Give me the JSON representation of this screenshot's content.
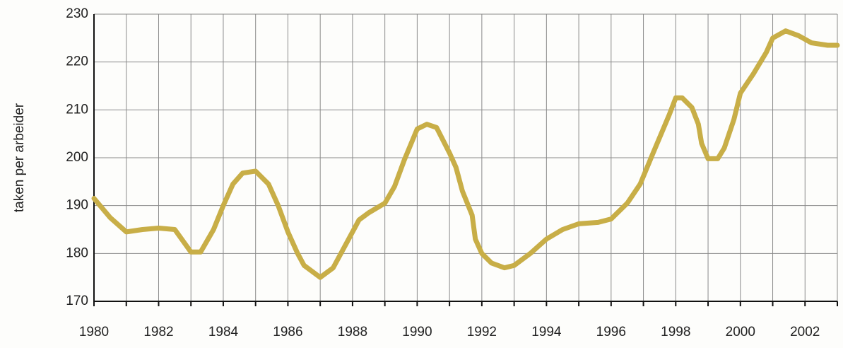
{
  "chart_data": {
    "type": "line",
    "y_label": "taken per arbeider",
    "x": [
      1980.0,
      1980.5,
      1981.0,
      1981.5,
      1982.0,
      1982.5,
      1983.0,
      1983.3,
      1983.7,
      1984.0,
      1984.3,
      1984.6,
      1985.0,
      1985.4,
      1985.7,
      1986.0,
      1986.3,
      1986.5,
      1987.0,
      1987.4,
      1987.8,
      1988.2,
      1988.5,
      1989.0,
      1989.3,
      1989.6,
      1990.0,
      1990.3,
      1990.6,
      1991.0,
      1991.2,
      1991.4,
      1991.7,
      1991.8,
      1992.0,
      1992.3,
      1992.7,
      1993.0,
      1993.5,
      1994.0,
      1994.5,
      1995.0,
      1995.6,
      1996.0,
      1996.5,
      1996.9,
      1997.3,
      1997.8,
      1998.0,
      1998.2,
      1998.5,
      1998.7,
      1998.8,
      1999.0,
      1999.3,
      1999.5,
      1999.8,
      2000.0,
      2000.4,
      2000.8,
      2001.0,
      2001.4,
      2001.8,
      2002.2,
      2002.7,
      2003.0
    ],
    "series": [
      {
        "color": "#c8ae47",
        "values": [
          191.5,
          187.5,
          184.5,
          185,
          185.3,
          185,
          180.3,
          180.3,
          185,
          190,
          194.5,
          196.8,
          197.2,
          194.5,
          190,
          184.5,
          180,
          177.5,
          175,
          177,
          182,
          187,
          188.5,
          190.5,
          194,
          199.5,
          206,
          207,
          206.3,
          201,
          198,
          193,
          188,
          183,
          180,
          178,
          177,
          177.5,
          180,
          183,
          185,
          186.2,
          186.5,
          187.2,
          190.5,
          194.5,
          201,
          209,
          212.5,
          212.5,
          210.5,
          207,
          203,
          199.8,
          199.8,
          202,
          208,
          213.5,
          217.5,
          222,
          225,
          226.5,
          225.5,
          224,
          223.5,
          223.5
        ]
      }
    ],
    "xlim": [
      1980,
      2003
    ],
    "xticks": [
      1980,
      1982,
      1984,
      1986,
      1988,
      1990,
      1992,
      1994,
      1996,
      1998,
      2000,
      2002
    ],
    "xminorticks": [
      1981,
      1983,
      1985,
      1987,
      1989,
      1991,
      1993,
      1995,
      1997,
      1999,
      2001,
      2003
    ],
    "ylim": [
      170,
      230
    ],
    "yticks": [
      170,
      180,
      190,
      200,
      210,
      220,
      230
    ],
    "grid": true
  }
}
